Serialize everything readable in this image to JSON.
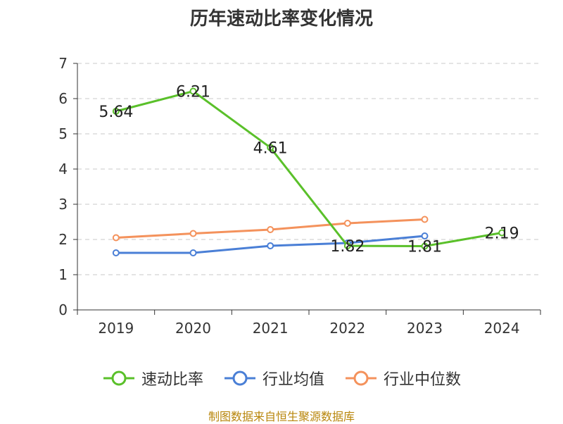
{
  "title": "历年速动比率变化情况",
  "source": "制图数据来自恒生聚源数据库",
  "colors": {
    "quick_ratio": "#5ac02a",
    "industry_mean": "#4a7fd6",
    "industry_median": "#f4925c",
    "grid": "#c8c8c8",
    "axis": "#333333"
  },
  "legend": [
    {
      "label": "速动比率",
      "color": "#5ac02a"
    },
    {
      "label": "行业均值",
      "color": "#4a7fd6"
    },
    {
      "label": "行业中位数",
      "color": "#f4925c"
    }
  ],
  "chart_data": {
    "type": "line",
    "categories": [
      "2019",
      "2020",
      "2021",
      "2022",
      "2023",
      "2024"
    ],
    "ylim": [
      0,
      7
    ],
    "yticks": [
      "0",
      "1",
      "2",
      "3",
      "4",
      "5",
      "6",
      "7"
    ],
    "grid": true,
    "legend_position": "bottom",
    "series": [
      {
        "name": "速动比率",
        "values": [
          5.64,
          6.21,
          4.61,
          1.82,
          1.81,
          2.19
        ],
        "labels": [
          "5.64",
          "6.21",
          "4.61",
          "1.82",
          "1.81",
          "2.19"
        ],
        "color": "#5ac02a"
      },
      {
        "name": "行业均值",
        "values": [
          1.62,
          1.62,
          1.82,
          1.9,
          2.1,
          null
        ],
        "color": "#4a7fd6"
      },
      {
        "name": "行业中位数",
        "values": [
          2.05,
          2.17,
          2.28,
          2.46,
          2.57,
          null
        ],
        "color": "#f4925c"
      }
    ]
  }
}
